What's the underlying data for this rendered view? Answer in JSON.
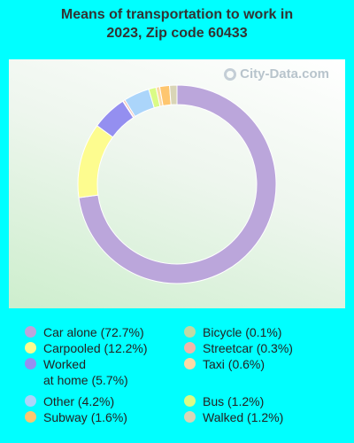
{
  "title_line1": "Means of transportation to work in",
  "title_line2": "2023, Zip code 60433",
  "watermark": "City-Data.com",
  "chart_data": {
    "type": "pie",
    "title": "Means of transportation to work in 2023, Zip code 60433",
    "donut": true,
    "slices": [
      {
        "label": "Car alone",
        "value": 72.7,
        "color": "#BBA6DB"
      },
      {
        "label": "Carpooled",
        "value": 12.2,
        "color": "#FDFC8F"
      },
      {
        "label": "Worked at home",
        "value": 5.7,
        "color": "#948FF0"
      },
      {
        "label": "Bicycle",
        "value": 0.1,
        "color": "#BFDAA5"
      },
      {
        "label": "Streetcar",
        "value": 0.3,
        "color": "#F1B6AA"
      },
      {
        "label": "Other",
        "value": 4.2,
        "color": "#ABD5FA"
      },
      {
        "label": "Bus",
        "value": 1.2,
        "color": "#DAFB86"
      },
      {
        "label": "Taxi",
        "value": 0.6,
        "color": "#FBDAA6"
      },
      {
        "label": "Subway",
        "value": 1.6,
        "color": "#FEC66F"
      },
      {
        "label": "Walked",
        "value": 1.2,
        "color": "#D9D5B6"
      }
    ]
  },
  "legend": {
    "left": [
      {
        "text": "Car alone (72.7%)",
        "color": "#BBA6DB"
      },
      {
        "text": "Carpooled (12.2%)",
        "color": "#FDFC8F"
      },
      {
        "text": "Worked\nat home (5.7%)",
        "color": "#948FF0"
      },
      {
        "text": "Other (4.2%)",
        "color": "#ABD5FA"
      },
      {
        "text": "Subway (1.6%)",
        "color": "#FEC66F"
      }
    ],
    "right": [
      {
        "text": "Bicycle (0.1%)",
        "color": "#BFDAA5"
      },
      {
        "text": "Streetcar (0.3%)",
        "color": "#F1B6AA"
      },
      {
        "text": "Taxi (0.6%)",
        "color": "#FBDAA6"
      },
      {
        "text": "Bus (1.2%)",
        "color": "#DAFB86"
      },
      {
        "text": "Walked (1.2%)",
        "color": "#D9D5B6"
      }
    ]
  }
}
